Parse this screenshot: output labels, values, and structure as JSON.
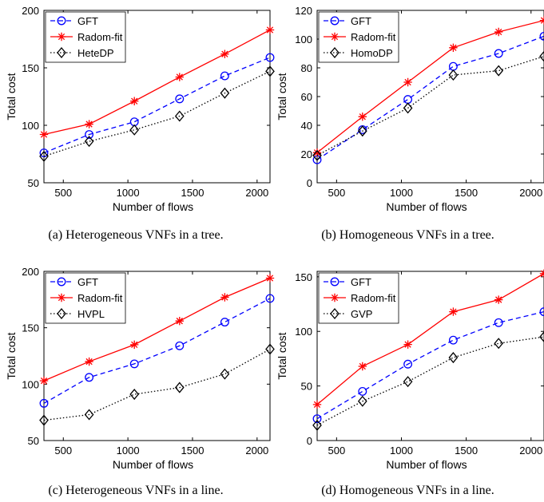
{
  "colors": {
    "gft": "#0000ff",
    "radom": "#ff0000",
    "dp": "#000000",
    "axis": "#000000",
    "background": "#ffffff"
  },
  "chart_data": [
    {
      "type": "line",
      "caption": "(a) Heterogeneous VNFs in a tree.",
      "xlabel": "Number of flows",
      "ylabel": "Total cost",
      "xlim": [
        350,
        2100
      ],
      "ylim": [
        50,
        200
      ],
      "xticks": [
        500,
        1000,
        1500,
        2000
      ],
      "yticks": [
        50,
        100,
        150,
        200
      ],
      "x": [
        350,
        700,
        1050,
        1400,
        1750,
        2100
      ],
      "legend_position": "top-left",
      "series": [
        {
          "name": "GFT",
          "marker": "circle",
          "style": "dashed",
          "color": "#0000ff",
          "values": [
            76,
            92,
            103,
            123,
            143,
            159
          ]
        },
        {
          "name": "Radom-fit",
          "marker": "star",
          "style": "solid",
          "color": "#ff0000",
          "values": [
            92,
            101,
            121,
            142,
            162,
            183
          ]
        },
        {
          "name": "HeteDP",
          "marker": "diamond",
          "style": "dotted",
          "color": "#000000",
          "values": [
            73,
            86,
            96,
            108,
            128,
            147
          ]
        }
      ]
    },
    {
      "type": "line",
      "caption": "(b) Homogeneous VNFs in a tree.",
      "xlabel": "Number of flows",
      "ylabel": "Total cost",
      "xlim": [
        350,
        2100
      ],
      "ylim": [
        0,
        120
      ],
      "xticks": [
        500,
        1000,
        1500,
        2000
      ],
      "yticks": [
        0,
        20,
        40,
        60,
        80,
        100,
        120
      ],
      "x": [
        350,
        700,
        1050,
        1400,
        1750,
        2100
      ],
      "legend_position": "top-left",
      "series": [
        {
          "name": "GFT",
          "marker": "circle",
          "style": "dashed",
          "color": "#0000ff",
          "values": [
            16,
            37,
            58,
            81,
            90,
            102
          ]
        },
        {
          "name": "Radom-fit",
          "marker": "star",
          "style": "solid",
          "color": "#ff0000",
          "values": [
            21,
            46,
            70,
            94,
            105,
            113
          ]
        },
        {
          "name": "HomoDP",
          "marker": "diamond",
          "style": "dotted",
          "color": "#000000",
          "values": [
            19,
            36,
            52,
            75,
            78,
            88
          ]
        }
      ]
    },
    {
      "type": "line",
      "caption": "(c) Heterogeneous VNFs in a line.",
      "xlabel": "Number of flows",
      "ylabel": "Total cost",
      "xlim": [
        350,
        2100
      ],
      "ylim": [
        50,
        200
      ],
      "xticks": [
        500,
        1000,
        1500,
        2000
      ],
      "yticks": [
        50,
        100,
        150,
        200
      ],
      "x": [
        350,
        700,
        1050,
        1400,
        1750,
        2100
      ],
      "legend_position": "top-left",
      "series": [
        {
          "name": "GFT",
          "marker": "circle",
          "style": "dashed",
          "color": "#0000ff",
          "values": [
            83,
            106,
            118,
            134,
            155,
            176
          ]
        },
        {
          "name": "Radom-fit",
          "marker": "star",
          "style": "solid",
          "color": "#ff0000",
          "values": [
            103,
            120,
            135,
            156,
            177,
            194
          ]
        },
        {
          "name": "HVPL",
          "marker": "diamond",
          "style": "dotted",
          "color": "#000000",
          "values": [
            68,
            73,
            91,
            97,
            109,
            131
          ]
        }
      ]
    },
    {
      "type": "line",
      "caption": "(d) Homogeneous VNFs in a line.",
      "xlabel": "Number of flows",
      "ylabel": "Total cost",
      "xlim": [
        350,
        2100
      ],
      "ylim": [
        0,
        155
      ],
      "xticks": [
        500,
        1000,
        1500,
        2000
      ],
      "yticks": [
        0,
        50,
        100,
        150
      ],
      "x": [
        350,
        700,
        1050,
        1400,
        1750,
        2100
      ],
      "legend_position": "top-left",
      "series": [
        {
          "name": "GFT",
          "marker": "circle",
          "style": "dashed",
          "color": "#0000ff",
          "values": [
            20,
            45,
            70,
            92,
            108,
            118
          ]
        },
        {
          "name": "Radom-fit",
          "marker": "star",
          "style": "solid",
          "color": "#ff0000",
          "values": [
            33,
            68,
            88,
            118,
            129,
            153
          ]
        },
        {
          "name": "GVP",
          "marker": "diamond",
          "style": "dotted",
          "color": "#000000",
          "values": [
            14,
            36,
            54,
            76,
            89,
            95
          ]
        }
      ]
    }
  ]
}
